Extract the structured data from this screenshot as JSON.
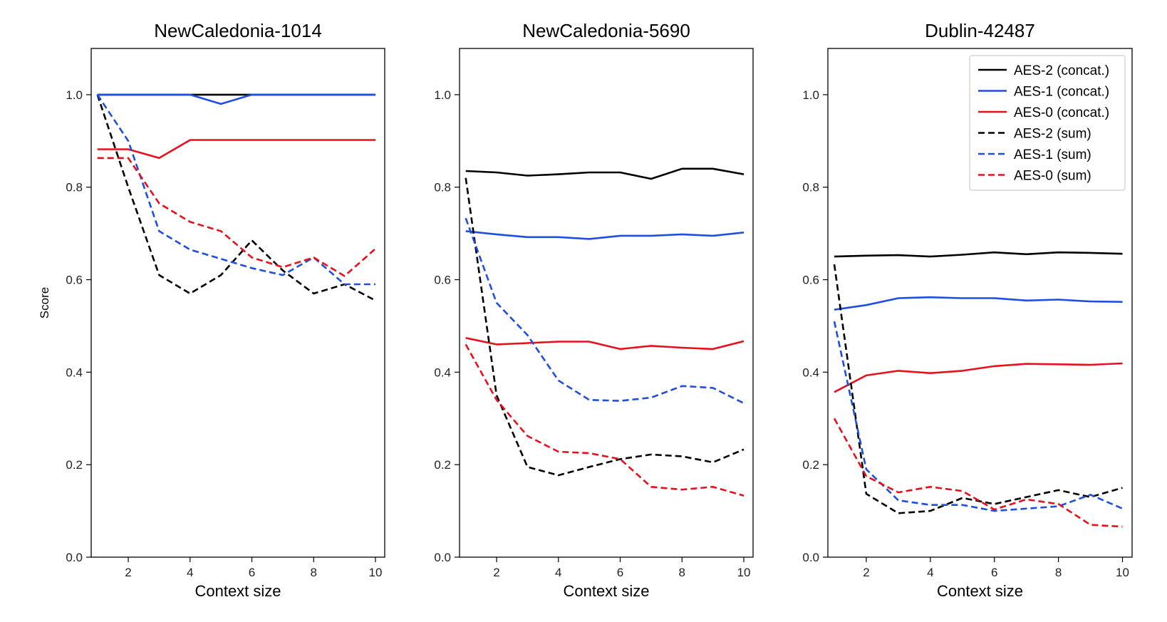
{
  "chart_data": [
    {
      "type": "line",
      "title": "NewCaledonia-1014",
      "xlabel": "Context size",
      "ylabel": "Score",
      "xlim": [
        0.8,
        10.3
      ],
      "ylim": [
        0.0,
        1.1
      ],
      "xticks": [
        2,
        4,
        6,
        8,
        10
      ],
      "yticks": [
        0.0,
        0.2,
        0.4,
        0.6,
        0.8,
        1.0
      ],
      "x": [
        1,
        2,
        3,
        4,
        5,
        6,
        7,
        8,
        9,
        10
      ],
      "series": [
        {
          "name": "AES-2 (concat.)",
          "color": "#000000",
          "dash": "solid",
          "values": [
            1.0,
            1.0,
            1.0,
            1.0,
            1.0,
            1.0,
            1.0,
            1.0,
            1.0,
            1.0
          ]
        },
        {
          "name": "AES-1 (concat.)",
          "color": "#1f4fe0",
          "dash": "solid",
          "values": [
            1.0,
            1.0,
            1.0,
            1.0,
            0.98,
            1.0,
            1.0,
            1.0,
            1.0,
            1.0
          ]
        },
        {
          "name": "AES-0 (concat.)",
          "color": "#e8101c",
          "dash": "solid",
          "values": [
            0.882,
            0.882,
            0.863,
            0.902,
            0.902,
            0.902,
            0.902,
            0.902,
            0.902,
            0.902
          ]
        },
        {
          "name": "AES-2 (sum)",
          "color": "#000000",
          "dash": "dashed",
          "values": [
            1.0,
            0.8,
            0.61,
            0.57,
            0.61,
            0.685,
            0.62,
            0.57,
            0.59,
            0.555
          ]
        },
        {
          "name": "AES-1 (sum)",
          "color": "#1f4fe0",
          "dash": "dashed",
          "values": [
            1.0,
            0.9,
            0.705,
            0.665,
            0.645,
            0.625,
            0.61,
            0.648,
            0.59,
            0.59
          ]
        },
        {
          "name": "AES-0 (sum)",
          "color": "#e8101c",
          "dash": "dashed",
          "values": [
            0.863,
            0.863,
            0.765,
            0.725,
            0.705,
            0.648,
            0.627,
            0.648,
            0.608,
            0.667
          ]
        }
      ]
    },
    {
      "type": "line",
      "title": "NewCaledonia-5690",
      "xlabel": "Context size",
      "ylabel": "",
      "xlim": [
        0.8,
        10.3
      ],
      "ylim": [
        0.0,
        1.1
      ],
      "xticks": [
        2,
        4,
        6,
        8,
        10
      ],
      "yticks": [
        0.0,
        0.2,
        0.4,
        0.6,
        0.8,
        1.0
      ],
      "x": [
        1,
        2,
        3,
        4,
        5,
        6,
        7,
        8,
        9,
        10
      ],
      "series": [
        {
          "name": "AES-2 (concat.)",
          "color": "#000000",
          "dash": "solid",
          "values": [
            0.835,
            0.832,
            0.825,
            0.828,
            0.832,
            0.832,
            0.818,
            0.84,
            0.84,
            0.828
          ]
        },
        {
          "name": "AES-1 (concat.)",
          "color": "#1f4fe0",
          "dash": "solid",
          "values": [
            0.705,
            0.698,
            0.692,
            0.692,
            0.688,
            0.695,
            0.695,
            0.698,
            0.695,
            0.702
          ]
        },
        {
          "name": "AES-0 (concat.)",
          "color": "#e8101c",
          "dash": "solid",
          "values": [
            0.474,
            0.46,
            0.463,
            0.466,
            0.466,
            0.45,
            0.457,
            0.453,
            0.45,
            0.467
          ]
        },
        {
          "name": "AES-2 (sum)",
          "color": "#000000",
          "dash": "dashed",
          "values": [
            0.82,
            0.35,
            0.195,
            0.177,
            0.195,
            0.212,
            0.222,
            0.218,
            0.205,
            0.233
          ]
        },
        {
          "name": "AES-1 (sum)",
          "color": "#1f4fe0",
          "dash": "dashed",
          "values": [
            0.733,
            0.55,
            0.48,
            0.382,
            0.34,
            0.338,
            0.345,
            0.37,
            0.366,
            0.333
          ]
        },
        {
          "name": "AES-0 (sum)",
          "color": "#e8101c",
          "dash": "dashed",
          "values": [
            0.46,
            0.34,
            0.262,
            0.228,
            0.225,
            0.212,
            0.152,
            0.146,
            0.152,
            0.133
          ]
        }
      ]
    },
    {
      "type": "line",
      "title": "Dublin-42487",
      "xlabel": "Context size",
      "ylabel": "",
      "xlim": [
        0.8,
        10.3
      ],
      "ylim": [
        0.0,
        1.1
      ],
      "xticks": [
        2,
        4,
        6,
        8,
        10
      ],
      "yticks": [
        0.0,
        0.2,
        0.4,
        0.6,
        0.8,
        1.0
      ],
      "legend": "top-right",
      "x": [
        1,
        2,
        3,
        4,
        5,
        6,
        7,
        8,
        9,
        10
      ],
      "series": [
        {
          "name": "AES-2 (concat.)",
          "color": "#000000",
          "dash": "solid",
          "values": [
            0.65,
            0.652,
            0.653,
            0.65,
            0.654,
            0.659,
            0.655,
            0.659,
            0.658,
            0.656
          ]
        },
        {
          "name": "AES-1 (concat.)",
          "color": "#1f4fe0",
          "dash": "solid",
          "values": [
            0.535,
            0.545,
            0.56,
            0.562,
            0.56,
            0.56,
            0.555,
            0.557,
            0.553,
            0.552
          ]
        },
        {
          "name": "AES-0 (concat.)",
          "color": "#e8101c",
          "dash": "solid",
          "values": [
            0.357,
            0.393,
            0.403,
            0.398,
            0.403,
            0.413,
            0.418,
            0.417,
            0.416,
            0.419
          ]
        },
        {
          "name": "AES-2 (sum)",
          "color": "#000000",
          "dash": "dashed",
          "values": [
            0.633,
            0.137,
            0.095,
            0.1,
            0.128,
            0.115,
            0.13,
            0.145,
            0.13,
            0.15
          ]
        },
        {
          "name": "AES-1 (sum)",
          "color": "#1f4fe0",
          "dash": "dashed",
          "values": [
            0.51,
            0.19,
            0.123,
            0.113,
            0.113,
            0.1,
            0.105,
            0.11,
            0.135,
            0.105
          ]
        },
        {
          "name": "AES-0 (sum)",
          "color": "#e8101c",
          "dash": "dashed",
          "values": [
            0.3,
            0.175,
            0.14,
            0.152,
            0.143,
            0.103,
            0.125,
            0.115,
            0.07,
            0.066
          ]
        }
      ]
    }
  ]
}
